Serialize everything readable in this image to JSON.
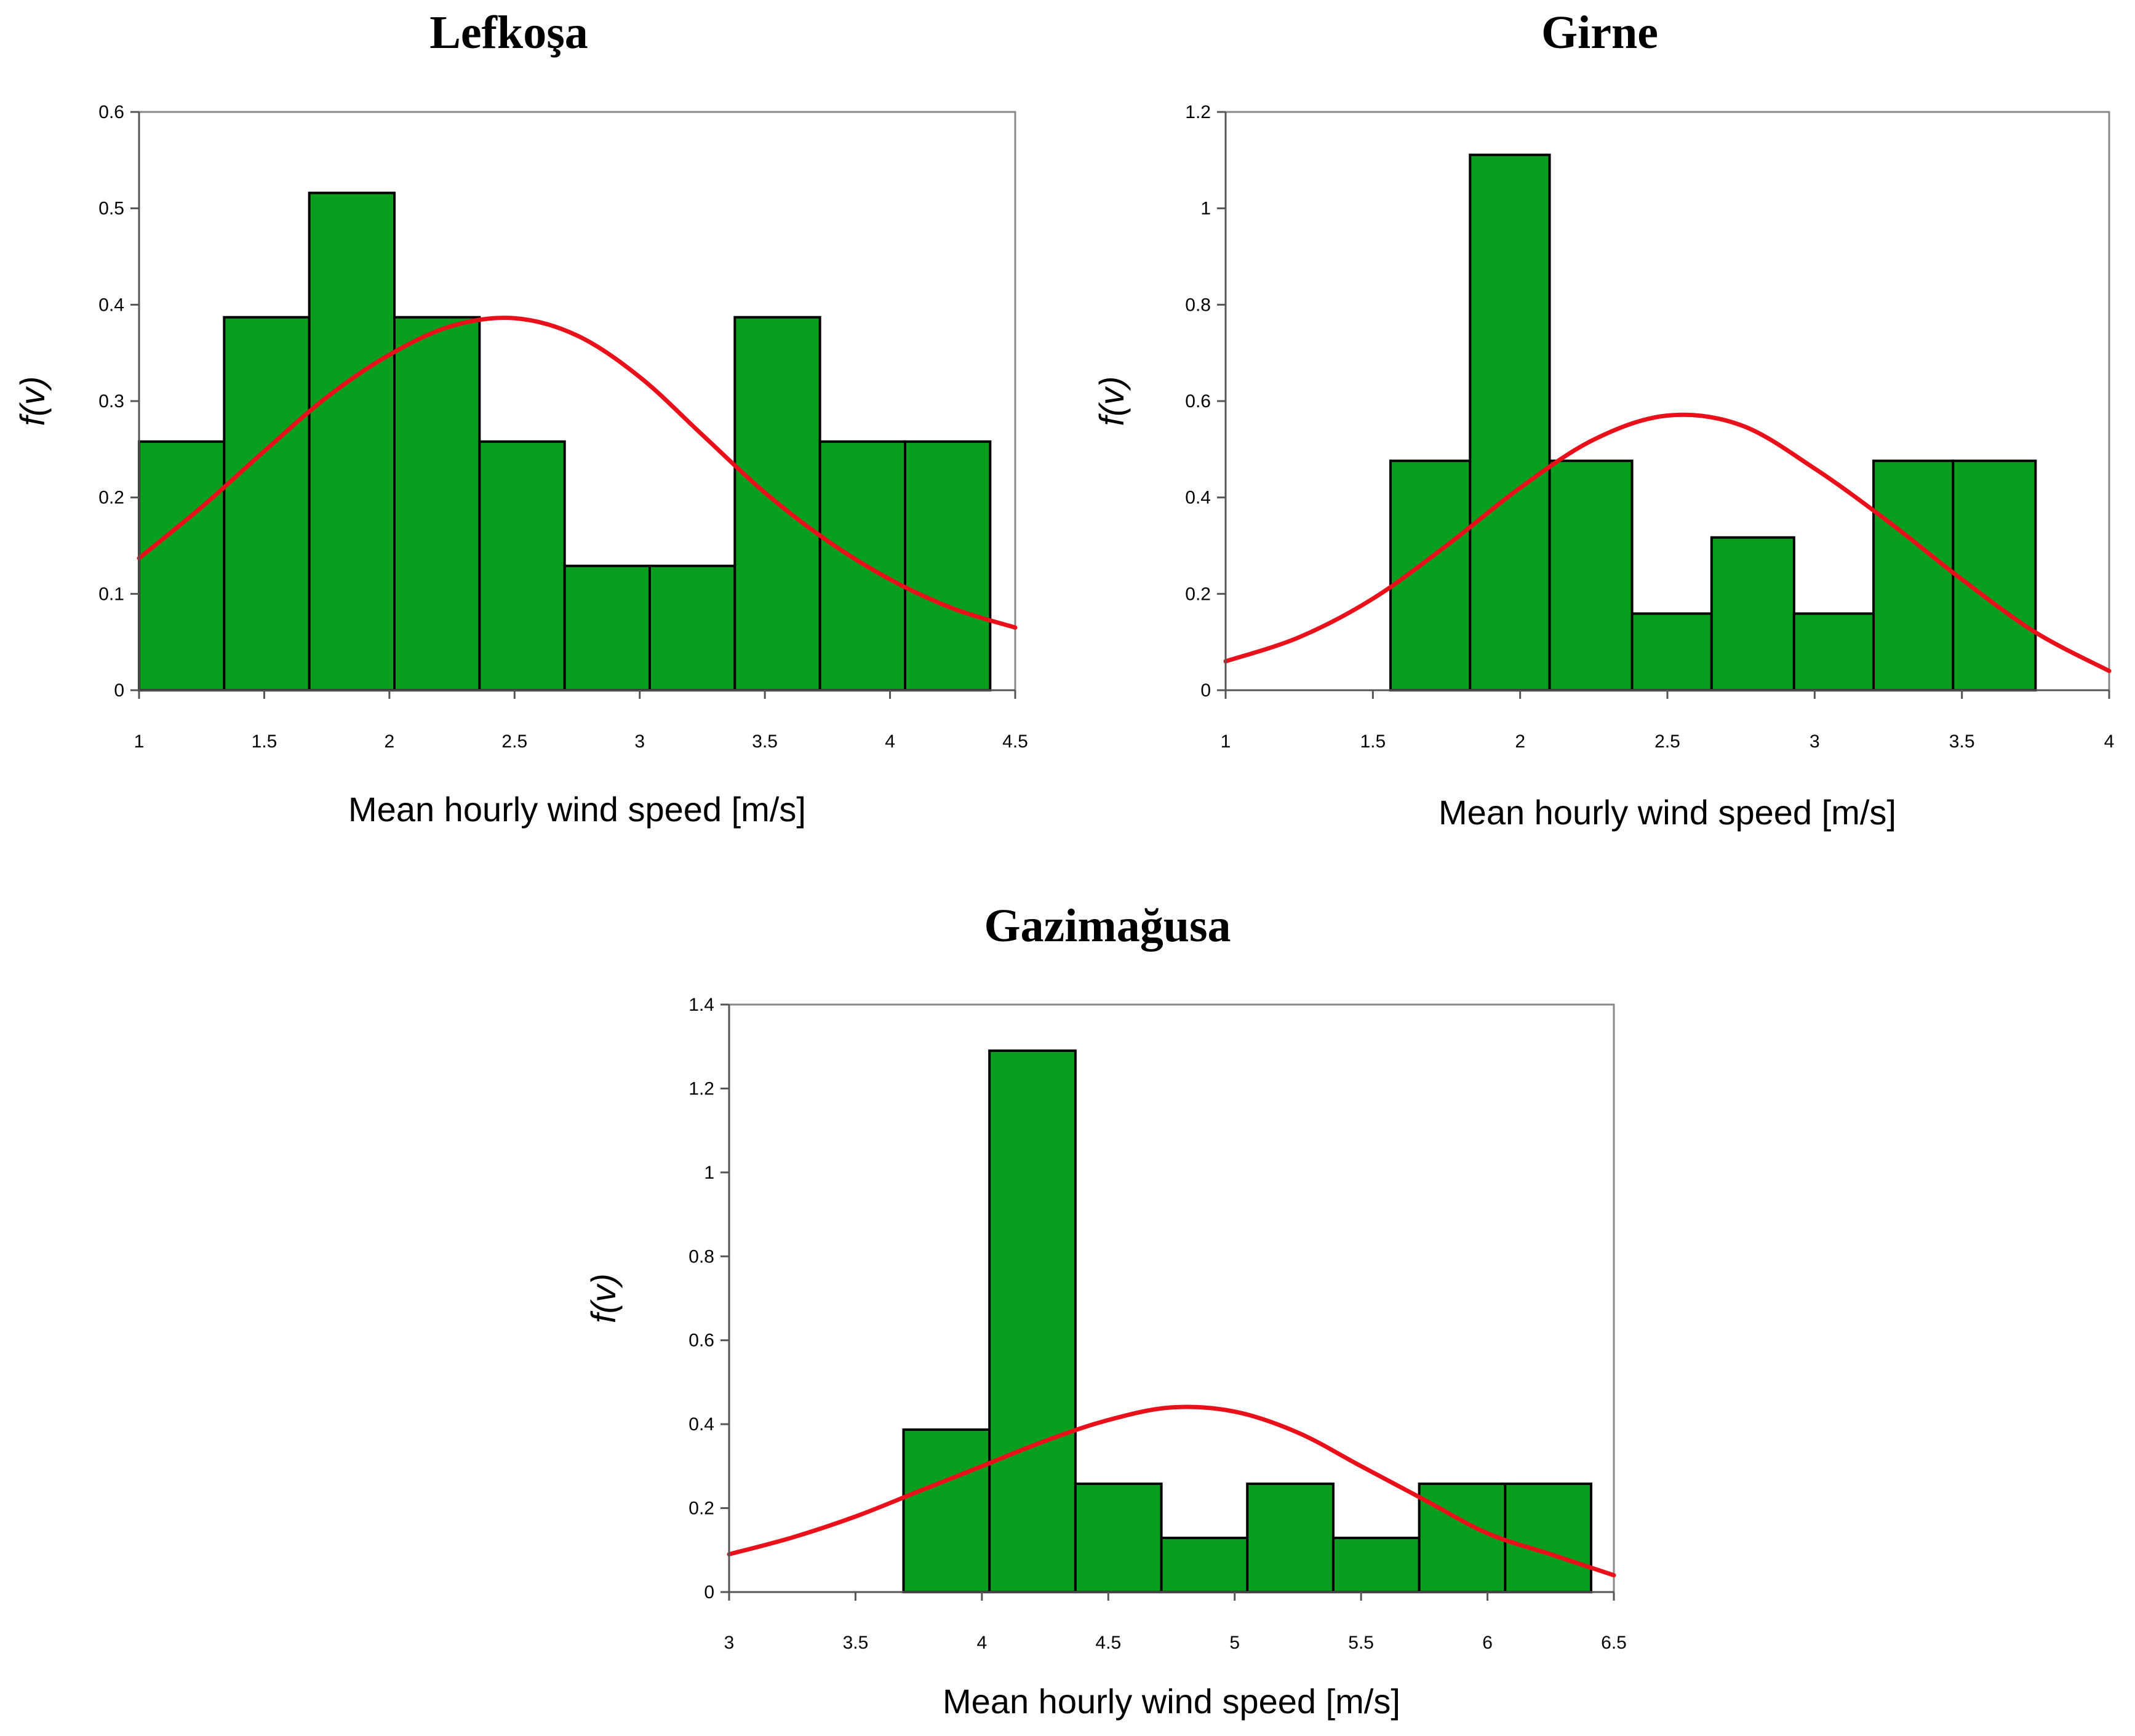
{
  "colors": {
    "bar": "#0a9e1e",
    "curve": "#e8101a"
  },
  "chart_data": [
    {
      "id": "lefkosa",
      "type": "bar",
      "title": "Lefkoşa",
      "xlabel": "Mean hourly wind speed [m/s]",
      "ylabel": "f(v)",
      "xlim": [
        1,
        4.5
      ],
      "ylim": [
        0,
        0.6
      ],
      "x_ticks": [
        "1",
        "1.5",
        "2",
        "2.5",
        "3",
        "3.5",
        "4",
        "4.5"
      ],
      "y_ticks": [
        "0",
        "0.1",
        "0.2",
        "0.3",
        "0.4",
        "0.5",
        "0.6"
      ],
      "bins": [
        {
          "x0": 1.0,
          "x1": 1.34,
          "value": 0.258
        },
        {
          "x0": 1.34,
          "x1": 1.68,
          "value": 0.387
        },
        {
          "x0": 1.68,
          "x1": 2.02,
          "value": 0.516
        },
        {
          "x0": 2.02,
          "x1": 2.36,
          "value": 0.387
        },
        {
          "x0": 2.36,
          "x1": 2.7,
          "value": 0.258
        },
        {
          "x0": 2.7,
          "x1": 3.04,
          "value": 0.129
        },
        {
          "x0": 3.04,
          "x1": 3.38,
          "value": 0.129
        },
        {
          "x0": 3.38,
          "x1": 3.72,
          "value": 0.387
        },
        {
          "x0": 3.72,
          "x1": 4.06,
          "value": 0.258
        },
        {
          "x0": 4.06,
          "x1": 4.4,
          "value": 0.258
        }
      ],
      "fit_curve": {
        "x": [
          1.0,
          1.25,
          1.5,
          1.75,
          2.0,
          2.25,
          2.5,
          2.75,
          3.0,
          3.25,
          3.5,
          3.75,
          4.0,
          4.25,
          4.5
        ],
        "y": [
          0.137,
          0.19,
          0.248,
          0.304,
          0.348,
          0.378,
          0.386,
          0.368,
          0.325,
          0.265,
          0.205,
          0.155,
          0.115,
          0.085,
          0.065
        ]
      }
    },
    {
      "id": "girne",
      "type": "bar",
      "title": "Girne",
      "xlabel": "Mean hourly wind speed [m/s]",
      "ylabel": "f(v)",
      "xlim": [
        1,
        4
      ],
      "ylim": [
        0,
        1.2
      ],
      "x_ticks": [
        "1",
        "1.5",
        "2",
        "2.5",
        "3",
        "3.5",
        "4"
      ],
      "y_ticks": [
        "0",
        "0.2",
        "0.4",
        "0.6",
        "0.8",
        "1",
        "1.2"
      ],
      "bins": [
        {
          "x0": 1.56,
          "x1": 1.83,
          "value": 0.476
        },
        {
          "x0": 1.83,
          "x1": 2.1,
          "value": 1.111
        },
        {
          "x0": 2.1,
          "x1": 2.38,
          "value": 0.476
        },
        {
          "x0": 2.38,
          "x1": 2.65,
          "value": 0.159
        },
        {
          "x0": 2.65,
          "x1": 2.93,
          "value": 0.317
        },
        {
          "x0": 2.93,
          "x1": 3.2,
          "value": 0.159
        },
        {
          "x0": 3.2,
          "x1": 3.47,
          "value": 0.476
        },
        {
          "x0": 3.47,
          "x1": 3.75,
          "value": 0.476
        }
      ],
      "fit_curve": {
        "x": [
          1.0,
          1.25,
          1.5,
          1.75,
          2.0,
          2.25,
          2.5,
          2.75,
          3.0,
          3.25,
          3.5,
          3.75,
          4.0
        ],
        "y": [
          0.06,
          0.11,
          0.19,
          0.3,
          0.42,
          0.52,
          0.57,
          0.55,
          0.46,
          0.35,
          0.23,
          0.12,
          0.04
        ]
      }
    },
    {
      "id": "gazimagusa",
      "type": "bar",
      "title": "Gazimağusa",
      "xlabel": "Mean hourly wind speed [m/s]",
      "ylabel": "f(v)",
      "xlim": [
        3,
        6.5
      ],
      "ylim": [
        0,
        1.4
      ],
      "x_ticks": [
        "3",
        "3.5",
        "4",
        "4.5",
        "5",
        "5.5",
        "6",
        "6.5"
      ],
      "y_ticks": [
        "0",
        "0.2",
        "0.4",
        "0.6",
        "0.8",
        "1",
        "1.2",
        "1.4"
      ],
      "bins": [
        {
          "x0": 3.69,
          "x1": 4.03,
          "value": 0.387
        },
        {
          "x0": 4.03,
          "x1": 4.37,
          "value": 1.29
        },
        {
          "x0": 4.37,
          "x1": 4.71,
          "value": 0.258
        },
        {
          "x0": 4.71,
          "x1": 5.05,
          "value": 0.129
        },
        {
          "x0": 5.05,
          "x1": 5.39,
          "value": 0.258
        },
        {
          "x0": 5.39,
          "x1": 5.73,
          "value": 0.129
        },
        {
          "x0": 5.73,
          "x1": 6.07,
          "value": 0.258
        },
        {
          "x0": 6.07,
          "x1": 6.41,
          "value": 0.258
        }
      ],
      "fit_curve": {
        "x": [
          3.0,
          3.25,
          3.5,
          3.75,
          4.0,
          4.25,
          4.5,
          4.75,
          5.0,
          5.25,
          5.5,
          5.75,
          6.0,
          6.25,
          6.5
        ],
        "y": [
          0.09,
          0.13,
          0.18,
          0.24,
          0.3,
          0.36,
          0.41,
          0.44,
          0.43,
          0.38,
          0.3,
          0.22,
          0.14,
          0.09,
          0.04
        ]
      }
    }
  ]
}
